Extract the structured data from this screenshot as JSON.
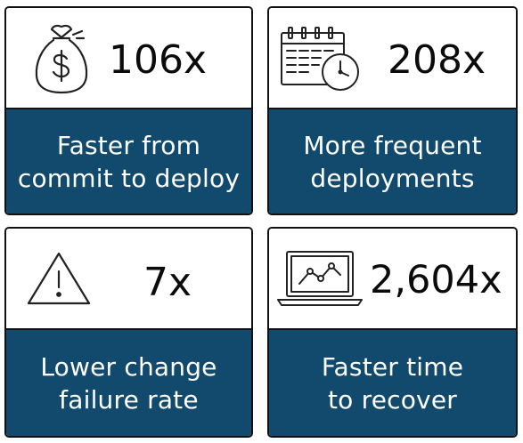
{
  "cards": [
    {
      "value": "106x",
      "description": "Faster from\ncommit to deploy",
      "icon": "money-bag-icon"
    },
    {
      "value": "208x",
      "description": "More frequent\ndeployments",
      "icon": "calendar-clock-icon"
    },
    {
      "value": "7x",
      "description": "Lower change\nfailure rate",
      "icon": "warning-icon"
    },
    {
      "value": "2,604x",
      "description": "Faster time\nto recover",
      "icon": "laptop-chart-icon"
    }
  ],
  "colors": {
    "panel": "#124a6e",
    "border": "#0f1115",
    "text_light": "#ffffff",
    "text_dark": "#0b0b0b"
  }
}
